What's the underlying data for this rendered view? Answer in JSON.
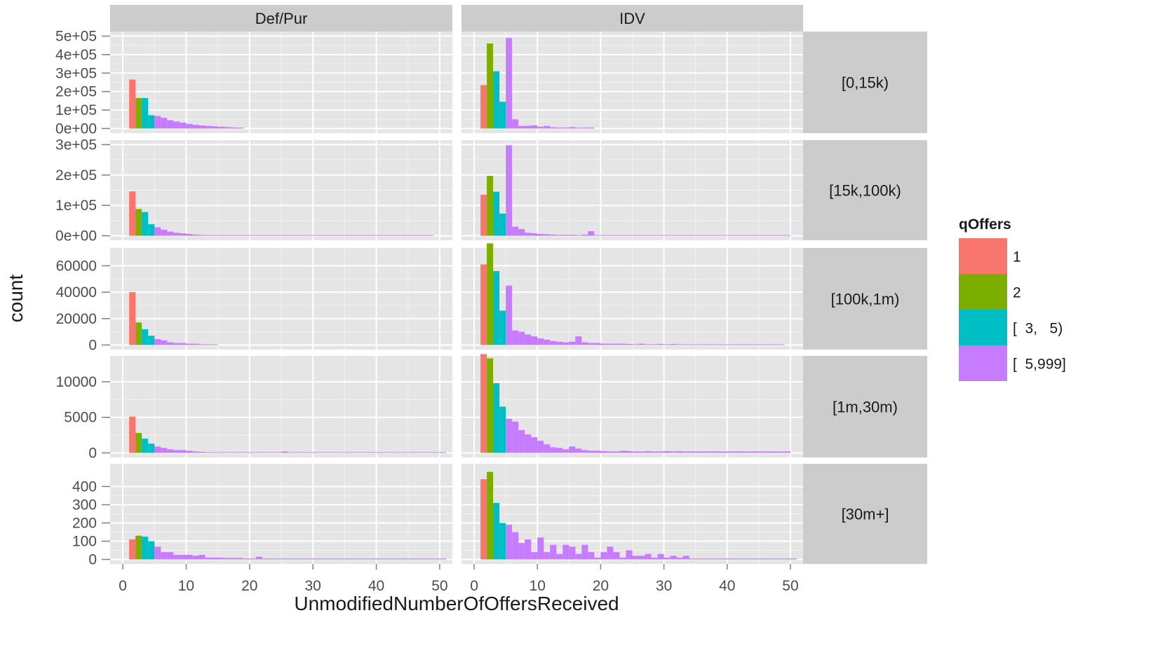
{
  "chart_data": {
    "type": "bar",
    "subtype": "faceted-histogram",
    "xlabel": "UnmodifiedNumberOfOffersReceived",
    "ylabel": "count",
    "col_facets": [
      "Def/Pur",
      "IDV"
    ],
    "row_facets": [
      "[0,15k)",
      "[15k,100k)",
      "[100k,1m)",
      "[1m,30m)",
      "[30m+]"
    ],
    "scales": "free_y",
    "xlim": [
      -2,
      52
    ],
    "x_ticks": [
      0,
      10,
      20,
      30,
      40,
      50
    ],
    "x_tick_labels": [
      "0",
      "10",
      "20",
      "30",
      "40",
      "50"
    ],
    "bin_width": 1,
    "grid": true,
    "legend": {
      "title": "qOffers",
      "position": "right",
      "entries": [
        {
          "label": "1",
          "color": "#F8766D",
          "bins": [
            1,
            2
          ]
        },
        {
          "label": "2",
          "color": "#7CAE00",
          "bins": [
            2,
            3
          ]
        },
        {
          "label": "[  3,   5)",
          "color": "#00BFC4",
          "bins": [
            3,
            5
          ]
        },
        {
          "label": "[  5,999]",
          "color": "#C77CFF",
          "bins": [
            5,
            999
          ]
        }
      ]
    },
    "rows": [
      {
        "label": "[0,15k)",
        "ylim": [
          0,
          500000
        ],
        "y_ticks": [
          0,
          100000,
          200000,
          300000,
          400000,
          500000
        ],
        "y_tick_labels": [
          "0e+00",
          "1e+05",
          "2e+05",
          "3e+05",
          "4e+05",
          "5e+05"
        ],
        "series": [
          {
            "name": "Def/Pur",
            "values": [
              265000,
              165000,
              165000,
              72000,
              68000,
              58000,
              45000,
              38000,
              32000,
              25000,
              20000,
              17000,
              14000,
              12000,
              10000,
              8000,
              6000,
              5000
            ]
          },
          {
            "name": "IDV",
            "values": [
              235000,
              460000,
              310000,
              145000,
              490000,
              50000,
              14000,
              15000,
              17000,
              10000,
              14000,
              7000,
              5000,
              5000,
              8000,
              4000,
              5000,
              5000
            ]
          }
        ]
      },
      {
        "label": "[15k,100k)",
        "ylim": [
          0,
          300000
        ],
        "y_ticks": [
          0,
          100000,
          200000,
          300000
        ],
        "y_tick_labels": [
          "0e+00",
          "1e+05",
          "2e+05",
          "3e+05"
        ],
        "series": [
          {
            "name": "Def/Pur",
            "values": [
              146000,
              88000,
              78000,
              38000,
              28000,
              20000,
              14000,
              10000,
              8000,
              6000,
              4000,
              3000,
              2000,
              2000,
              2000,
              1500,
              1500,
              1500,
              1500,
              1500,
              1500,
              1500,
              1500,
              1500,
              1500,
              1500,
              1500,
              1500,
              1500,
              1500,
              1500,
              1500,
              1500,
              1500,
              1500,
              1500,
              1500,
              1500,
              1500,
              1500,
              1500,
              1500,
              1500,
              1500,
              1500,
              1500,
              1500,
              1500
            ]
          },
          {
            "name": "IDV",
            "values": [
              135000,
              197000,
              145000,
              73000,
              298000,
              30000,
              22000,
              10000,
              8000,
              6000,
              5000,
              4000,
              3000,
              3000,
              3000,
              2000,
              4000,
              15000,
              2000,
              2000,
              2000,
              2000,
              2000,
              2000,
              2000,
              2000,
              2000,
              2000,
              2000,
              2000,
              2000,
              2000,
              2000,
              2000,
              2000,
              2000,
              2000,
              2000,
              2000,
              2000,
              2000,
              2000,
              2000,
              2000,
              2000,
              2000,
              2000,
              2000,
              2000
            ]
          }
        ]
      },
      {
        "label": "[100k,1m)",
        "ylim": [
          0,
          70000
        ],
        "y_ticks": [
          0,
          20000,
          40000,
          60000
        ],
        "y_tick_labels": [
          "0",
          "20000",
          "40000",
          "60000"
        ],
        "series": [
          {
            "name": "Def/Pur",
            "values": [
              40000,
              17000,
              12000,
              7000,
              4500,
              3500,
              2000,
              1500,
              1500,
              1000,
              1000,
              500,
              500,
              500
            ]
          },
          {
            "name": "IDV",
            "values": [
              61000,
              77000,
              56000,
              26000,
              45000,
              11000,
              10000,
              8000,
              6500,
              5000,
              4000,
              3000,
              2500,
              2000,
              2500,
              6500,
              2000,
              1500,
              1500,
              1000,
              1000,
              1000,
              1000,
              800,
              500,
              1000,
              500,
              600,
              800,
              500,
              800,
              500,
              500,
              500,
              500,
              500,
              500,
              500,
              500,
              500,
              500,
              500,
              500,
              500,
              500,
              500,
              500,
              500
            ]
          }
        ]
      },
      {
        "label": "[1m,30m)",
        "ylim": [
          0,
          13000
        ],
        "y_ticks": [
          0,
          5000,
          10000
        ],
        "y_tick_labels": [
          "0",
          "5000",
          "10000"
        ],
        "series": [
          {
            "name": "Def/Pur",
            "values": [
              5100,
              2800,
              2000,
              1300,
              900,
              700,
              500,
              400,
              400,
              300,
              200,
              150,
              100,
              100,
              100,
              100,
              80,
              80,
              80,
              80,
              80,
              80,
              80,
              80,
              200,
              80,
              80,
              80,
              80,
              80,
              80,
              80,
              80,
              80,
              80,
              80,
              80,
              80,
              80,
              80,
              80,
              80,
              80,
              80,
              80,
              80,
              80,
              80,
              80,
              80
            ]
          },
          {
            "name": "IDV",
            "values": [
              13900,
              13300,
              9800,
              6500,
              4800,
              4400,
              3200,
              2600,
              2200,
              1700,
              1200,
              800,
              700,
              500,
              900,
              600,
              400,
              300,
              300,
              250,
              200,
              200,
              300,
              250,
              200,
              200,
              250,
              200,
              200,
              250,
              200,
              250,
              200,
              200,
              200,
              200,
              200,
              200,
              200,
              200,
              200,
              200,
              200,
              200,
              200,
              200,
              200,
              200,
              200
            ]
          }
        ]
      },
      {
        "label": "[30m+]",
        "ylim": [
          0,
          500
        ],
        "y_ticks": [
          0,
          100,
          200,
          300,
          400
        ],
        "y_tick_labels": [
          "0",
          "100",
          "200",
          "300",
          "400"
        ],
        "series": [
          {
            "name": "Def/Pur",
            "values": [
              110,
              130,
              125,
              100,
              70,
              40,
              40,
              25,
              25,
              25,
              20,
              25,
              10,
              10,
              10,
              8,
              8,
              8,
              5,
              5,
              15,
              5,
              5,
              5,
              5,
              5,
              5,
              5,
              5,
              5,
              5,
              5,
              5,
              5,
              5,
              5,
              5,
              5,
              5,
              5,
              5,
              5,
              5,
              5,
              5,
              5,
              5,
              5,
              5,
              5
            ]
          },
          {
            "name": "IDV",
            "values": [
              440,
              480,
              310,
              200,
              190,
              150,
              90,
              110,
              40,
              120,
              40,
              80,
              30,
              80,
              70,
              30,
              80,
              40,
              10,
              40,
              70,
              40,
              10,
              50,
              20,
              20,
              30,
              10,
              30,
              10,
              20,
              10,
              20,
              5,
              5,
              5,
              5,
              5,
              5,
              5,
              5,
              5,
              5,
              5,
              5,
              5,
              5,
              5,
              5,
              5
            ]
          }
        ]
      }
    ]
  }
}
